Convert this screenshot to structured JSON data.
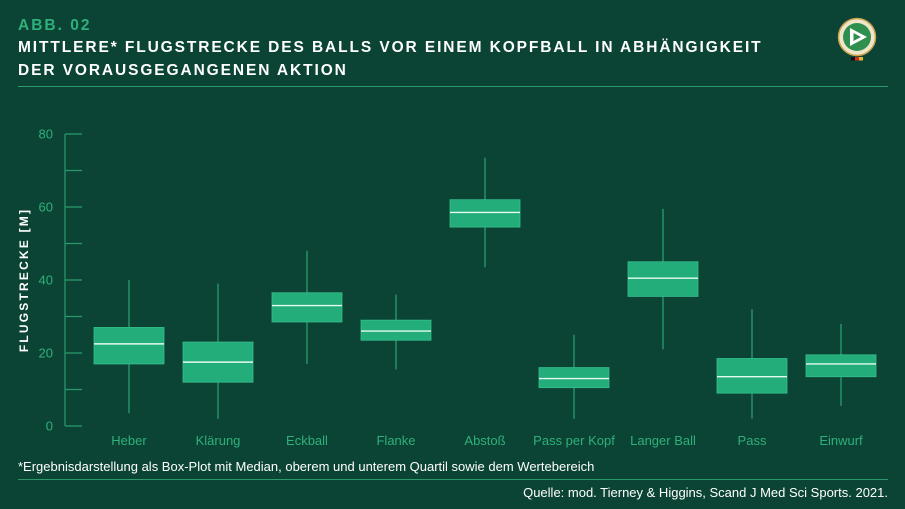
{
  "header": {
    "figure_label": "ABB. 02",
    "logo_icon": "dfb-logo"
  },
  "chart_data": {
    "type": "box",
    "title": [
      "MITTLERE* FLUGSTRECKE DES BALLS VOR EINEM KOPFBALL IN ABHÄNGIGKEIT",
      "DER VORAUSGEGANGENEN AKTION"
    ],
    "xlabel": "",
    "ylabel": "FLUGSTRECKE [M]",
    "ylim": [
      0,
      80
    ],
    "yticks": [
      0,
      20,
      40,
      60,
      80
    ],
    "minor_tick_step": 10,
    "grid": false,
    "legend": "none",
    "categories": [
      "Heber",
      "Klärung",
      "Eckball",
      "Flanke",
      "Abstoß",
      "Pass per Kopf",
      "Langer Ball",
      "Pass",
      "Einwurf"
    ],
    "boxes": [
      {
        "min": 3.5,
        "q1": 17,
        "median": 22.5,
        "q3": 27,
        "max": 40
      },
      {
        "min": 2,
        "q1": 12,
        "median": 17.5,
        "q3": 23,
        "max": 39
      },
      {
        "min": 17,
        "q1": 28.5,
        "median": 33,
        "q3": 36.5,
        "max": 48
      },
      {
        "min": 15.5,
        "q1": 23.5,
        "median": 26,
        "q3": 29,
        "max": 36
      },
      {
        "min": 43.5,
        "q1": 54.5,
        "median": 58.5,
        "q3": 62,
        "max": 73.5
      },
      {
        "min": 2,
        "q1": 10.5,
        "median": 13,
        "q3": 16,
        "max": 25
      },
      {
        "min": 21,
        "q1": 35.5,
        "median": 40.5,
        "q3": 45,
        "max": 59.5
      },
      {
        "min": 2,
        "q1": 9,
        "median": 13.5,
        "q3": 18.5,
        "max": 32
      },
      {
        "min": 5.5,
        "q1": 13.5,
        "median": 17,
        "q3": 19.5,
        "max": 28
      }
    ]
  },
  "footnote": "*Ergebnisdarstellung als Box-Plot mit Median, oberem und unterem Quartil sowie dem Wertebereich",
  "source": "Quelle: mod. Tierney & Higgins, Scand J Med Sci Sports. 2021.",
  "colors": {
    "background": "#0b4434",
    "accent": "#2fb07b",
    "box_fill": "#22ad7a",
    "median_line": "#e6fbf1",
    "whisker": "#2ba474",
    "rule": "#2a9a6c",
    "text": "#ffffff"
  }
}
